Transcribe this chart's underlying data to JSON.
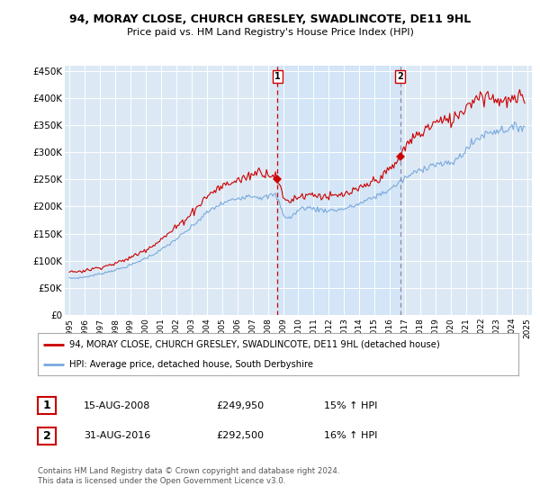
{
  "title": "94, MORAY CLOSE, CHURCH GRESLEY, SWADLINCOTE, DE11 9HL",
  "subtitle": "Price paid vs. HM Land Registry's House Price Index (HPI)",
  "legend_line1": "94, MORAY CLOSE, CHURCH GRESLEY, SWADLINCOTE, DE11 9HL (detached house)",
  "legend_line2": "HPI: Average price, detached house, South Derbyshire",
  "sale1_label": "1",
  "sale1_date": "15-AUG-2008",
  "sale1_price": "£249,950",
  "sale1_hpi": "15% ↑ HPI",
  "sale1_year": 2008.625,
  "sale2_label": "2",
  "sale2_date": "31-AUG-2016",
  "sale2_price": "£292,500",
  "sale2_hpi": "16% ↑ HPI",
  "sale2_year": 2016.667,
  "ylim": [
    0,
    460000
  ],
  "yticks": [
    0,
    50000,
    100000,
    150000,
    200000,
    250000,
    300000,
    350000,
    400000,
    450000
  ],
  "ytick_labels": [
    "£0",
    "£50K",
    "£100K",
    "£150K",
    "£200K",
    "£250K",
    "£300K",
    "£350K",
    "£400K",
    "£450K"
  ],
  "xlim_start": 1994.7,
  "xlim_end": 2025.3,
  "xticks": [
    1995,
    1996,
    1997,
    1998,
    1999,
    2000,
    2001,
    2002,
    2003,
    2004,
    2005,
    2006,
    2007,
    2008,
    2009,
    2010,
    2011,
    2012,
    2013,
    2014,
    2015,
    2016,
    2017,
    2018,
    2019,
    2020,
    2021,
    2022,
    2023,
    2024,
    2025
  ],
  "red_color": "#cc0000",
  "blue_color": "#7aaadd",
  "marker1_color": "#cc0000",
  "marker2_color": "#8888aa",
  "shade_color": "#d0e4f7",
  "plot_bg": "#dce9f5",
  "footer": "Contains HM Land Registry data © Crown copyright and database right 2024.\nThis data is licensed under the Open Government Licence v3.0."
}
